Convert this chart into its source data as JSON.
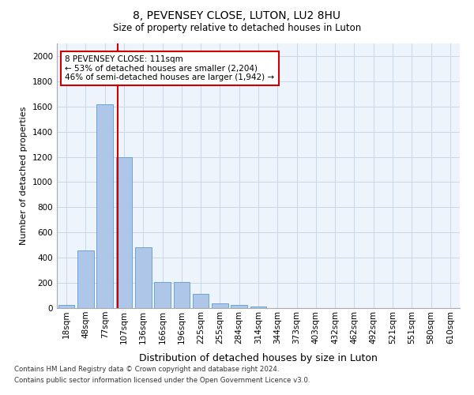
{
  "title": "8, PEVENSEY CLOSE, LUTON, LU2 8HU",
  "subtitle": "Size of property relative to detached houses in Luton",
  "xlabel": "Distribution of detached houses by size in Luton",
  "ylabel": "Number of detached properties",
  "bar_labels": [
    "18sqm",
    "48sqm",
    "77sqm",
    "107sqm",
    "136sqm",
    "166sqm",
    "196sqm",
    "225sqm",
    "255sqm",
    "284sqm",
    "314sqm",
    "344sqm",
    "373sqm",
    "403sqm",
    "432sqm",
    "462sqm",
    "492sqm",
    "521sqm",
    "551sqm",
    "580sqm",
    "610sqm"
  ],
  "bar_values": [
    25,
    460,
    1620,
    1200,
    480,
    210,
    210,
    110,
    35,
    25,
    15,
    0,
    0,
    0,
    0,
    0,
    0,
    0,
    0,
    0,
    0
  ],
  "bar_color": "#aec6e8",
  "bar_edgecolor": "#5b9bd5",
  "property_line_x": 2.67,
  "property_line_label": "8 PEVENSEY CLOSE: 111sqm",
  "annotation_line1": "← 53% of detached houses are smaller (2,204)",
  "annotation_line2": "46% of semi-detached houses are larger (1,942) →",
  "annotation_box_color": "#ffffff",
  "annotation_box_edgecolor": "#cc0000",
  "ylim": [
    0,
    2100
  ],
  "yticks": [
    0,
    200,
    400,
    600,
    800,
    1000,
    1200,
    1400,
    1600,
    1800,
    2000
  ],
  "footnote1": "Contains HM Land Registry data © Crown copyright and database right 2024.",
  "footnote2": "Contains public sector information licensed under the Open Government Licence v3.0.",
  "line_color": "#cc0000",
  "grid_color": "#c8d8e8",
  "bg_color": "#eef4fb",
  "title_fontsize": 10,
  "subtitle_fontsize": 8.5,
  "ylabel_fontsize": 8,
  "xlabel_fontsize": 9,
  "tick_fontsize": 7.5,
  "annot_fontsize": 7.5
}
